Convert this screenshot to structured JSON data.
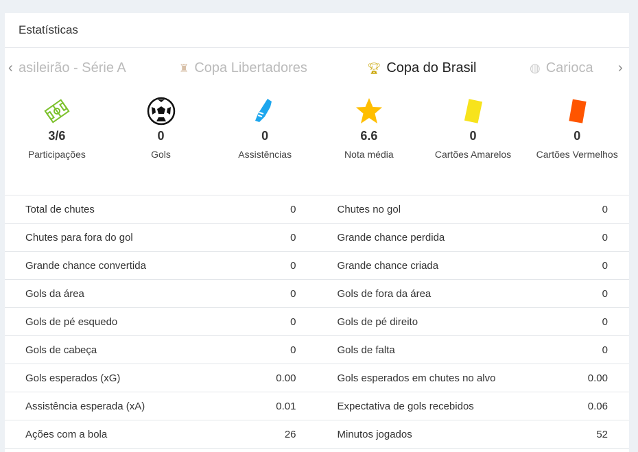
{
  "header": {
    "title": "Estatísticas"
  },
  "tabs": [
    {
      "label": "asileirão - Série A",
      "icon": "league-icon"
    },
    {
      "label": "Copa Libertadores",
      "icon": "trophy-icon"
    },
    {
      "label": "Copa do Brasil",
      "icon": "trophy-icon",
      "active": true
    },
    {
      "label": "Carioca",
      "icon": "league-icon"
    }
  ],
  "summary": [
    {
      "value": "3/6",
      "label": "Participações",
      "icon": "field-icon"
    },
    {
      "value": "0",
      "label": "Gols",
      "icon": "ball-icon"
    },
    {
      "value": "0",
      "label": "Assistências",
      "icon": "boot-icon"
    },
    {
      "value": "6.6",
      "label": "Nota média",
      "icon": "star-icon"
    },
    {
      "value": "0",
      "label": "Cartões Amarelos",
      "icon": "yellow-card-icon"
    },
    {
      "value": "0",
      "label": "Cartões Vermelhos",
      "icon": "red-card-icon"
    }
  ],
  "rows": [
    [
      {
        "label": "Total de chutes",
        "value": "0"
      },
      {
        "label": "Chutes no gol",
        "value": "0"
      }
    ],
    [
      {
        "label": "Chutes para fora do gol",
        "value": "0"
      },
      {
        "label": "Grande chance perdida",
        "value": "0"
      }
    ],
    [
      {
        "label": "Grande chance convertida",
        "value": "0"
      },
      {
        "label": "Grande chance criada",
        "value": "0"
      }
    ],
    [
      {
        "label": "Gols da área",
        "value": "0"
      },
      {
        "label": "Gols de fora da área",
        "value": "0"
      }
    ],
    [
      {
        "label": "Gols de pé esquedo",
        "value": "0"
      },
      {
        "label": "Gols de pé direito",
        "value": "0"
      }
    ],
    [
      {
        "label": "Gols de cabeça",
        "value": "0"
      },
      {
        "label": "Gols de falta",
        "value": "0"
      }
    ],
    [
      {
        "label": "Gols esperados (xG)",
        "value": "0.00"
      },
      {
        "label": "Gols esperados em chutes no alvo",
        "value": "0.00"
      }
    ],
    [
      {
        "label": "Assistência esperada (xA)",
        "value": "0.01"
      },
      {
        "label": "Expectativa de gols recebidos",
        "value": "0.06"
      }
    ],
    [
      {
        "label": "Ações com a bola",
        "value": "26"
      },
      {
        "label": "Minutos jogados",
        "value": "52"
      }
    ]
  ]
}
